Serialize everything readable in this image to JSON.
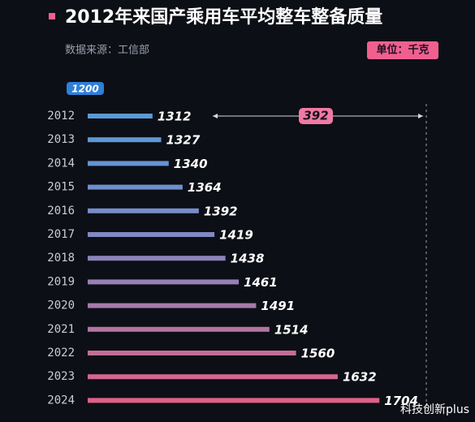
{
  "chart_data": {
    "type": "hbar",
    "title": "2012年来国产乘用车平均整车整备质量",
    "subtitle": "数据来源：工信部",
    "unit": "单位：千克",
    "categories": [
      "2012",
      "2013",
      "2014",
      "2015",
      "2016",
      "2017",
      "2018",
      "2019",
      "2020",
      "2021",
      "2022",
      "2023",
      "2024"
    ],
    "values": [
      1312,
      1327,
      1340,
      1364,
      1392,
      1419,
      1438,
      1461,
      1491,
      1514,
      1560,
      1632,
      1704
    ],
    "colors": [
      "#5a9ad6",
      "#5f97d4",
      "#6694d1",
      "#6e90cd",
      "#778cc9",
      "#8288c2",
      "#8c84bb",
      "#9780b4",
      "#a67aaa",
      "#b375a2",
      "#c26e98",
      "#d2678f",
      "#e06088"
    ],
    "xlim": [
      1200,
      1785
    ],
    "xticks": [
      1200
    ],
    "annotation": 392,
    "watermark": "科技创新plus"
  }
}
